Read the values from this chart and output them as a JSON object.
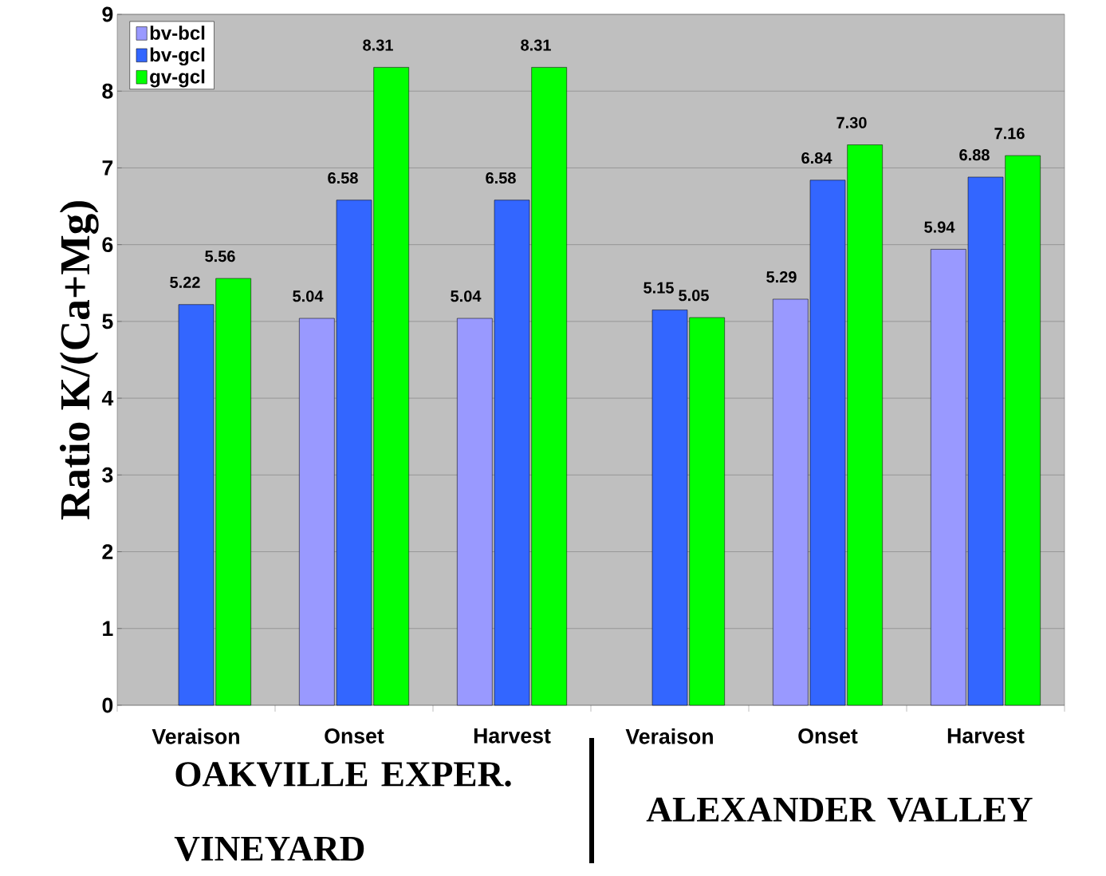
{
  "chart_data": {
    "type": "bar",
    "ylabel": "Ratio   K/(Ca+Mg)",
    "categories": [
      "Veraison",
      "Onset",
      "Harvest",
      "Veraison",
      "Onset",
      "Harvest"
    ],
    "series": [
      {
        "name": "bv-bcl",
        "color": "#9999ff",
        "values": [
          null,
          5.04,
          5.04,
          null,
          5.29,
          5.94
        ],
        "value_labels": [
          null,
          "5.04",
          "5.04",
          null,
          "5.29",
          "5.94"
        ]
      },
      {
        "name": "bv-gcl",
        "color": "#3366ff",
        "values": [
          5.22,
          6.58,
          6.58,
          5.15,
          6.84,
          6.88
        ],
        "value_labels": [
          "5.22",
          "6.58",
          "6.58",
          "5.15",
          "6.84",
          "6.88"
        ]
      },
      {
        "name": "gv-gcl",
        "color": "#00ff00",
        "values": [
          5.56,
          8.31,
          8.31,
          5.05,
          7.3,
          7.16
        ],
        "value_labels": [
          "5.56",
          "8.31",
          "8.31",
          "5.05",
          "7.30",
          "7.16"
        ]
      }
    ],
    "ylim": [
      0,
      9
    ],
    "yticks": [
      0,
      1,
      2,
      3,
      4,
      5,
      6,
      7,
      8,
      9
    ],
    "grid": "y",
    "legend": "top left",
    "annotations": [
      "OAKVILLE EXPER. VINEYARD",
      "ALEXANDER VALLEY"
    ]
  }
}
